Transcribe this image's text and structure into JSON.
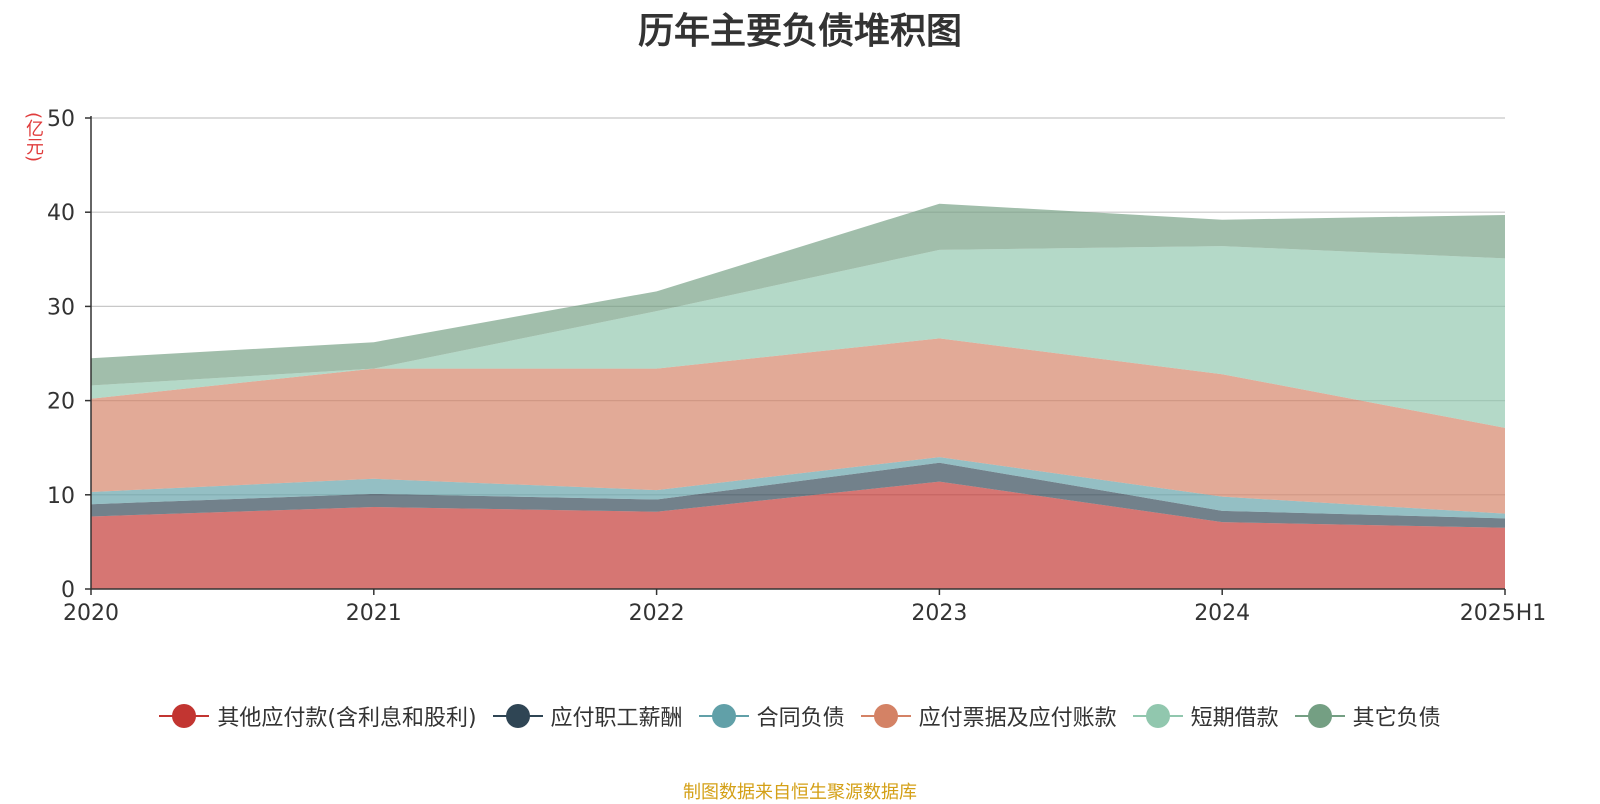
{
  "title": "历年主要负债堆积图",
  "unit_label": "(亿元)",
  "source": "制图数据来自恒生聚源数据库",
  "chart_data": {
    "type": "area",
    "stacked": true,
    "title": "历年主要负债堆积图",
    "ylabel": "(亿元)",
    "xlabel": "",
    "categories": [
      "2020",
      "2021",
      "2022",
      "2023",
      "2024",
      "2025H1"
    ],
    "ylim": [
      0,
      50
    ],
    "yticks": [
      0,
      10,
      20,
      30,
      40,
      50
    ],
    "grid": true,
    "legend_position": "bottom",
    "series": [
      {
        "name": "其他应付款(含利息和股利)",
        "color": "#c23531",
        "values": [
          7.7,
          8.7,
          8.2,
          11.4,
          7.1,
          6.5
        ]
      },
      {
        "name": "应付职工薪酬",
        "color": "#2f4554",
        "values": [
          1.3,
          1.4,
          1.3,
          2.0,
          1.2,
          1.0
        ]
      },
      {
        "name": "合同负债",
        "color": "#61a0a8",
        "values": [
          1.3,
          1.6,
          1.0,
          0.6,
          1.5,
          0.5
        ]
      },
      {
        "name": "应付票据及应付账款",
        "color": "#d48265",
        "values": [
          9.9,
          11.7,
          12.9,
          12.6,
          13.0,
          9.1
        ]
      },
      {
        "name": "短期借款",
        "color": "#91c7ae",
        "values": [
          1.4,
          0.0,
          6.1,
          9.4,
          13.6,
          18.0
        ]
      },
      {
        "name": "其它负债",
        "color": "#749f83",
        "values": [
          2.9,
          2.8,
          2.1,
          4.9,
          2.8,
          4.6
        ]
      }
    ]
  }
}
